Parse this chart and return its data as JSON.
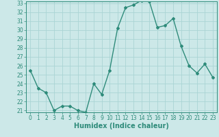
{
  "title": "",
  "xlabel": "Humidex (Indice chaleur)",
  "ylabel": "",
  "x": [
    0,
    1,
    2,
    3,
    4,
    5,
    6,
    7,
    8,
    9,
    10,
    11,
    12,
    13,
    14,
    15,
    16,
    17,
    18,
    19,
    20,
    21,
    22,
    23
  ],
  "y": [
    25.5,
    23.5,
    23.0,
    21.0,
    21.5,
    21.5,
    21.0,
    20.8,
    24.0,
    22.8,
    25.5,
    30.2,
    32.5,
    32.8,
    33.3,
    33.2,
    30.3,
    30.5,
    31.3,
    28.2,
    26.0,
    25.2,
    26.2,
    24.7
  ],
  "line_color": "#2e8b7a",
  "marker": "D",
  "marker_size": 2.0,
  "bg_color": "#cce8e8",
  "grid_color": "#aad4d4",
  "ylim_min": 21,
  "ylim_max": 33,
  "xlim_min": -0.5,
  "xlim_max": 23.5,
  "yticks": [
    21,
    22,
    23,
    24,
    25,
    26,
    27,
    28,
    29,
    30,
    31,
    32,
    33
  ],
  "xticks": [
    0,
    1,
    2,
    3,
    4,
    5,
    6,
    7,
    8,
    9,
    10,
    11,
    12,
    13,
    14,
    15,
    16,
    17,
    18,
    19,
    20,
    21,
    22,
    23
  ],
  "tick_fontsize": 5.5,
  "label_fontsize": 7.0,
  "line_width": 1.0
}
